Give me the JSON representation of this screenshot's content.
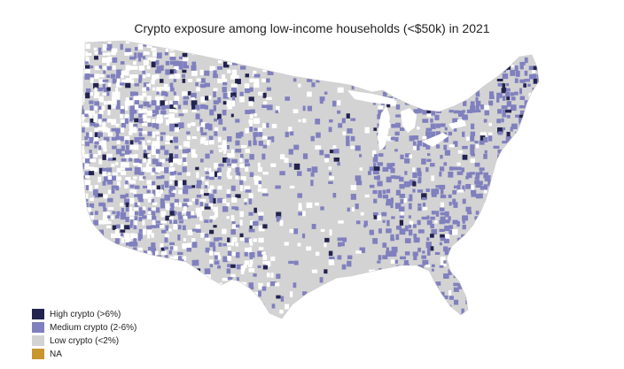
{
  "title": "Crypto exposure among low-income households (<$50k) in 2021",
  "legend": {
    "items": [
      {
        "label": "High crypto (>6%)",
        "color": "#23234f"
      },
      {
        "label": "Medium crypto (2-6%)",
        "color": "#8080bf"
      },
      {
        "label": "Low crypto (<2%)",
        "color": "#d3d3d3"
      },
      {
        "label": "NA",
        "color": "#c9952f"
      }
    ]
  },
  "map": {
    "region": "Contiguous United States",
    "colors": {
      "high": "#23234f",
      "medium": "#8080bf",
      "low": "#d3d3d3",
      "na": "#c9952f",
      "blank": "#ffffff"
    }
  }
}
